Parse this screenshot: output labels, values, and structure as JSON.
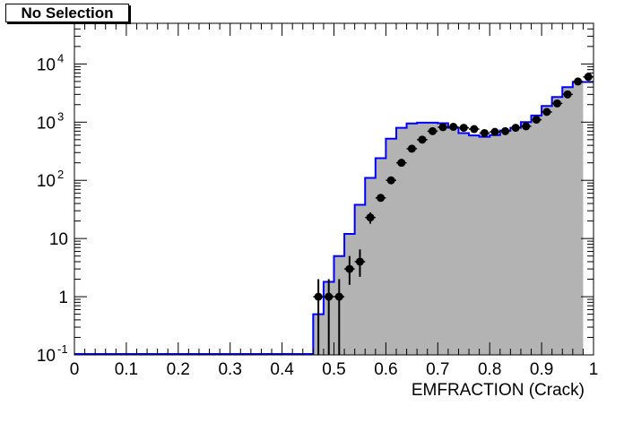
{
  "selection_label": "No Selection",
  "chart_data": {
    "type": "histogram",
    "xlabel": "EMFRACTION (Crack)",
    "ylabel": "",
    "xlim": [
      0,
      1
    ],
    "ylim": [
      0.1,
      50000
    ],
    "yscale": "log",
    "bin_width": 0.02,
    "x_ticks": [
      "0",
      "0.1",
      "0.2",
      "0.3",
      "0.4",
      "0.5",
      "0.6",
      "0.7",
      "0.8",
      "0.9",
      "1"
    ],
    "y_ticks": [
      {
        "value": 0.1,
        "base": "10",
        "exp": "-1"
      },
      {
        "value": 1,
        "base": "1",
        "exp": ""
      },
      {
        "value": 10,
        "base": "10",
        "exp": ""
      },
      {
        "value": 100,
        "base": "10",
        "exp": "2"
      },
      {
        "value": 1000,
        "base": "10",
        "exp": "3"
      },
      {
        "value": 10000,
        "base": "10",
        "exp": "4"
      }
    ],
    "mc": {
      "fill_color": "#b3b3b3",
      "line_color": "#0000ff",
      "bin_edges_start": 0.46,
      "values": [
        0.5,
        1.8,
        5,
        12,
        38,
        110,
        240,
        520,
        800,
        950,
        980,
        980,
        960,
        800,
        650,
        590,
        560,
        600,
        720,
        800,
        1000,
        1300,
        1900,
        2700,
        4000,
        4900
      ]
    },
    "data": {
      "color": "#000000",
      "points": [
        {
          "x": 0.47,
          "y": 1,
          "lo": 0.1,
          "hi": 2
        },
        {
          "x": 0.49,
          "y": 1,
          "lo": 0.1,
          "hi": 2
        },
        {
          "x": 0.51,
          "y": 1,
          "lo": 0.1,
          "hi": 2
        },
        {
          "x": 0.53,
          "y": 3,
          "lo": 1.6,
          "hi": 5
        },
        {
          "x": 0.55,
          "y": 4,
          "lo": 2.2,
          "hi": 6.5
        },
        {
          "x": 0.57,
          "y": 23,
          "lo": 18,
          "hi": 28
        },
        {
          "x": 0.59,
          "y": 50,
          "lo": 43,
          "hi": 57
        },
        {
          "x": 0.61,
          "y": 100,
          "lo": 90,
          "hi": 110
        },
        {
          "x": 0.63,
          "y": 200,
          "lo": 185,
          "hi": 215
        },
        {
          "x": 0.65,
          "y": 350,
          "lo": 330,
          "hi": 370
        },
        {
          "x": 0.67,
          "y": 500,
          "lo": 478,
          "hi": 522
        },
        {
          "x": 0.69,
          "y": 700,
          "lo": 674,
          "hi": 726
        },
        {
          "x": 0.71,
          "y": 820,
          "lo": 791,
          "hi": 849
        },
        {
          "x": 0.73,
          "y": 830,
          "lo": 801,
          "hi": 859
        },
        {
          "x": 0.75,
          "y": 800,
          "lo": 772,
          "hi": 828
        },
        {
          "x": 0.77,
          "y": 760,
          "lo": 732,
          "hi": 788
        },
        {
          "x": 0.79,
          "y": 650,
          "lo": 624,
          "hi": 676
        },
        {
          "x": 0.81,
          "y": 680,
          "lo": 654,
          "hi": 706
        },
        {
          "x": 0.83,
          "y": 700,
          "lo": 674,
          "hi": 726
        },
        {
          "x": 0.85,
          "y": 800,
          "lo": 772,
          "hi": 828
        },
        {
          "x": 0.87,
          "y": 850,
          "lo": 821,
          "hi": 879
        },
        {
          "x": 0.89,
          "y": 1100,
          "lo": 1067,
          "hi": 1133
        },
        {
          "x": 0.91,
          "y": 1500,
          "lo": 1461,
          "hi": 1539
        },
        {
          "x": 0.93,
          "y": 2100,
          "lo": 2054,
          "hi": 2146
        },
        {
          "x": 0.95,
          "y": 3000,
          "lo": 2945,
          "hi": 3055
        },
        {
          "x": 0.97,
          "y": 5000,
          "lo": 4929,
          "hi": 5071
        },
        {
          "x": 0.99,
          "y": 6000,
          "lo": 5923,
          "hi": 6077
        }
      ]
    }
  }
}
